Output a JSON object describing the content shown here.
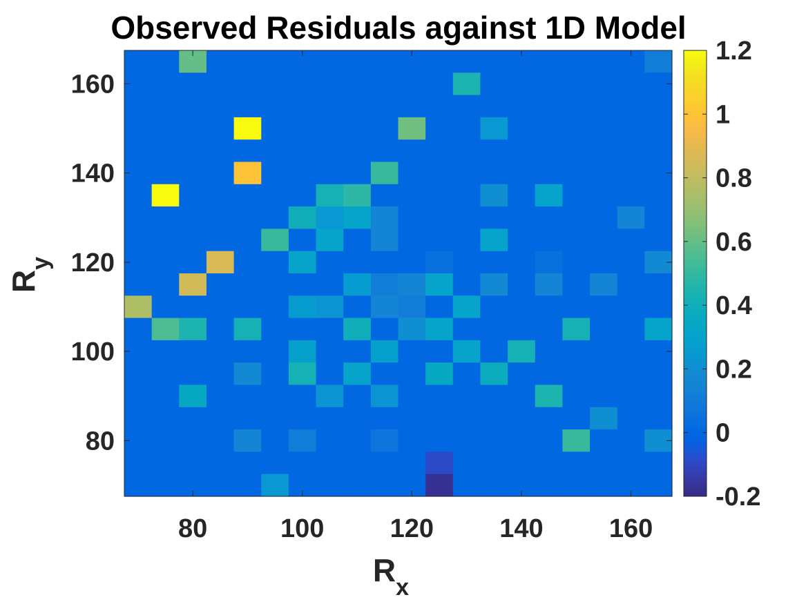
{
  "chart_data": {
    "type": "heatmap",
    "title": "Observed Residuals against 1D Model",
    "xlabel": {
      "main": "R",
      "sub": "x"
    },
    "ylabel": {
      "main": "R",
      "sub": "y"
    },
    "x_centers": [
      70,
      75,
      80,
      85,
      90,
      95,
      100,
      105,
      110,
      115,
      120,
      125,
      130,
      135,
      140,
      145,
      150,
      155,
      160,
      165
    ],
    "y_centers": [
      165,
      160,
      155,
      150,
      145,
      140,
      135,
      130,
      125,
      120,
      115,
      110,
      105,
      100,
      95,
      90,
      85,
      80,
      75,
      70
    ],
    "xlim": [
      67.5,
      167.5
    ],
    "ylim": [
      67.5,
      167.5
    ],
    "xticks": [
      80,
      100,
      120,
      140,
      160
    ],
    "yticks": [
      80,
      100,
      120,
      140,
      160
    ],
    "colorbar": {
      "limits": [
        -0.2,
        1.2
      ],
      "ticks": [
        -0.2,
        0,
        0.2,
        0.4,
        0.6,
        0.8,
        1,
        1.2
      ],
      "tick_labels": [
        "-0.2",
        "0",
        "0.2",
        "0.4",
        "0.6",
        "0.8",
        "1",
        "1.2"
      ],
      "colormap": "parula"
    },
    "z": [
      [
        0,
        0,
        0.6,
        0,
        0,
        0,
        0,
        0,
        0,
        0,
        0,
        0,
        0,
        0,
        0,
        0,
        0,
        0,
        0,
        0.1
      ],
      [
        0,
        0,
        0,
        0,
        0,
        0,
        0,
        0,
        0,
        0,
        0,
        0,
        0.45,
        0,
        0,
        0,
        0,
        0,
        0,
        0
      ],
      [
        0,
        0,
        0,
        0,
        0,
        0,
        0,
        0,
        0,
        0,
        0,
        0,
        0,
        0,
        0,
        0,
        0,
        0,
        0,
        0
      ],
      [
        0,
        0,
        0,
        0,
        1.2,
        0,
        0,
        0,
        0,
        0,
        0.62,
        0,
        0,
        0.25,
        0,
        0,
        0,
        0,
        0,
        0
      ],
      [
        0,
        0,
        0,
        0,
        0,
        0,
        0,
        0,
        0,
        0,
        0,
        0,
        0,
        0,
        0,
        0,
        0,
        0,
        0,
        0
      ],
      [
        0,
        0,
        0,
        0,
        1.0,
        0,
        0,
        0,
        0,
        0.52,
        0,
        0,
        0,
        0,
        0,
        0,
        0,
        0,
        0,
        0
      ],
      [
        0,
        1.2,
        0,
        0,
        0,
        0,
        0,
        0.42,
        0.48,
        0,
        0,
        0,
        0,
        0.2,
        0,
        0.3,
        0,
        0,
        0,
        0
      ],
      [
        0,
        0,
        0,
        0,
        0,
        0,
        0.4,
        0.25,
        0.3,
        0.15,
        0,
        0,
        0,
        0,
        0,
        0,
        0,
        0,
        0.15,
        0
      ],
      [
        0,
        0,
        0,
        0,
        0,
        0.52,
        0,
        0.32,
        0,
        0.15,
        0,
        0,
        0,
        0.3,
        0,
        0,
        0,
        0,
        0,
        0
      ],
      [
        0,
        0,
        0,
        0.87,
        0,
        0,
        0.3,
        0,
        0,
        0,
        0,
        0.05,
        0,
        0,
        0,
        0.05,
        0,
        0,
        0,
        0.18
      ],
      [
        0,
        0,
        0.85,
        0,
        0,
        0,
        0,
        0,
        0.27,
        0.12,
        0.15,
        0.3,
        0,
        0.18,
        0,
        0.15,
        0,
        0.15,
        0,
        0
      ],
      [
        0.75,
        0,
        0,
        0,
        0,
        0,
        0.27,
        0.22,
        0,
        0.15,
        0.1,
        0,
        0.3,
        0,
        0,
        0,
        0,
        0,
        0,
        0
      ],
      [
        0,
        0.55,
        0.45,
        0,
        0.42,
        0,
        0,
        0,
        0.4,
        0,
        0.2,
        0.32,
        0,
        0,
        0,
        0,
        0.42,
        0,
        0,
        0.3
      ],
      [
        0,
        0,
        0,
        0,
        0,
        0,
        0.28,
        0,
        0,
        0.28,
        0,
        0,
        0.3,
        0,
        0.42,
        0,
        0,
        0,
        0,
        0
      ],
      [
        0,
        0,
        0,
        0,
        0.18,
        0,
        0.42,
        0,
        0.32,
        0,
        0,
        0.35,
        0,
        0.38,
        0,
        0,
        0,
        0,
        0,
        0
      ],
      [
        0,
        0,
        0.35,
        0,
        0,
        0,
        0,
        0.22,
        0,
        0.22,
        0,
        0,
        0,
        0,
        0,
        0.45,
        0,
        0,
        0,
        0
      ],
      [
        0,
        0,
        0,
        0,
        0,
        0,
        0,
        0,
        0,
        0,
        0,
        0,
        0,
        0,
        0,
        0,
        0,
        0.2,
        0,
        0
      ],
      [
        0,
        0,
        0,
        0,
        0.15,
        0,
        0.12,
        0,
        0,
        0.06,
        0,
        0,
        0,
        0,
        0,
        0,
        0.5,
        0,
        0,
        0.2
      ],
      [
        0,
        0,
        0,
        0,
        0,
        0,
        0,
        0,
        0,
        0,
        0,
        -0.1,
        0,
        0,
        0,
        0,
        0,
        0,
        0,
        0
      ],
      [
        0,
        0,
        0,
        0,
        0,
        0.25,
        0,
        0,
        0,
        0,
        0,
        -0.18,
        0,
        0,
        0,
        0,
        0,
        0,
        0,
        0
      ]
    ]
  }
}
